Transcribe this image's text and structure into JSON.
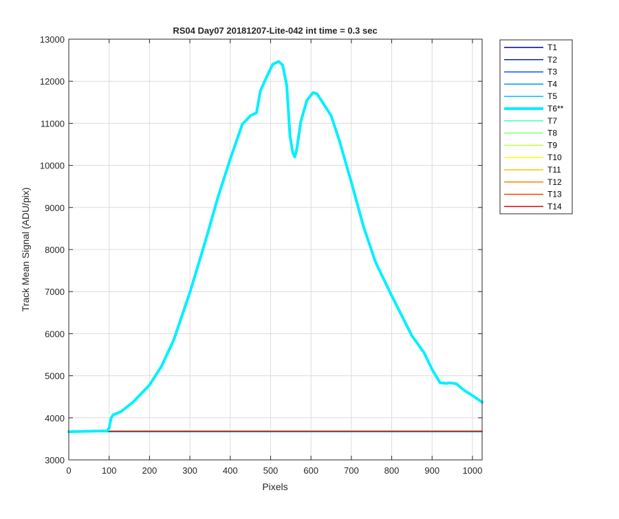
{
  "chart_data": {
    "type": "line",
    "title": "RS04 Day07 20181207-Lite-042 int time = 0.3 sec",
    "xlabel": "Pixels",
    "ylabel": "Track Mean Signal (ADU/pix)",
    "xlim": [
      0,
      1024
    ],
    "ylim": [
      3000,
      13000
    ],
    "xticks": [
      0,
      100,
      200,
      300,
      400,
      500,
      600,
      700,
      800,
      900,
      1000
    ],
    "yticks": [
      3000,
      4000,
      5000,
      6000,
      7000,
      8000,
      9000,
      10000,
      11000,
      12000,
      13000
    ],
    "grid": true,
    "legend_position": "outside-right",
    "series": [
      {
        "name": "T1",
        "color": "#00008f",
        "highlight": false,
        "x": [
          0,
          1024
        ],
        "y": [
          3670,
          3670
        ]
      },
      {
        "name": "T2",
        "color": "#0020c8",
        "highlight": false,
        "x": [
          0,
          1024
        ],
        "y": [
          3670,
          3670
        ]
      },
      {
        "name": "T3",
        "color": "#0050ff",
        "highlight": false,
        "x": [
          0,
          1024
        ],
        "y": [
          3670,
          3670
        ]
      },
      {
        "name": "T4",
        "color": "#0090ff",
        "highlight": false,
        "x": [
          0,
          1024
        ],
        "y": [
          3670,
          3670
        ]
      },
      {
        "name": "T5",
        "color": "#00c0ff",
        "highlight": false,
        "x": [
          0,
          1024
        ],
        "y": [
          3670,
          3670
        ]
      },
      {
        "name": "T6**",
        "color": "#00f0ff",
        "highlight": true,
        "x": [
          0,
          95,
          100,
          105,
          110,
          130,
          160,
          200,
          230,
          260,
          300,
          340,
          370,
          400,
          430,
          450,
          465,
          475,
          490,
          505,
          520,
          530,
          540,
          548,
          555,
          560,
          565,
          575,
          590,
          605,
          615,
          630,
          650,
          670,
          700,
          730,
          760,
          800,
          850,
          880,
          900,
          920,
          935,
          945,
          960,
          980,
          1000,
          1024
        ],
        "y": [
          3670,
          3690,
          3760,
          4000,
          4070,
          4150,
          4380,
          4780,
          5230,
          5850,
          6980,
          8250,
          9260,
          10150,
          10980,
          11180,
          11250,
          11780,
          12100,
          12400,
          12470,
          12380,
          11900,
          10700,
          10300,
          10200,
          10400,
          11050,
          11550,
          11730,
          11700,
          11480,
          11180,
          10600,
          9600,
          8550,
          7700,
          6900,
          5950,
          5550,
          5150,
          4830,
          4820,
          4830,
          4810,
          4650,
          4530,
          4370
        ]
      },
      {
        "name": "T7",
        "color": "#40ffc0",
        "highlight": false,
        "x": [
          0,
          1024
        ],
        "y": [
          3690,
          3690
        ]
      },
      {
        "name": "T8",
        "color": "#80ff80",
        "highlight": false,
        "x": [
          0,
          1024
        ],
        "y": [
          3690,
          3690
        ]
      },
      {
        "name": "T9",
        "color": "#c0ff40",
        "highlight": false,
        "x": [
          0,
          1024
        ],
        "y": [
          3680,
          3680
        ]
      },
      {
        "name": "T10",
        "color": "#ffff00",
        "highlight": false,
        "x": [
          0,
          1024
        ],
        "y": [
          3680,
          3680
        ]
      },
      {
        "name": "T11",
        "color": "#ffc000",
        "highlight": false,
        "x": [
          0,
          1024
        ],
        "y": [
          3680,
          3680
        ]
      },
      {
        "name": "T12",
        "color": "#ff8000",
        "highlight": false,
        "x": [
          0,
          1024
        ],
        "y": [
          3680,
          3680
        ]
      },
      {
        "name": "T13",
        "color": "#ff4000",
        "highlight": false,
        "x": [
          0,
          1024
        ],
        "y": [
          3680,
          3680
        ]
      },
      {
        "name": "T14",
        "color": "#e00000",
        "highlight": false,
        "x": [
          0,
          1024
        ],
        "y": [
          3680,
          3680
        ]
      }
    ]
  }
}
